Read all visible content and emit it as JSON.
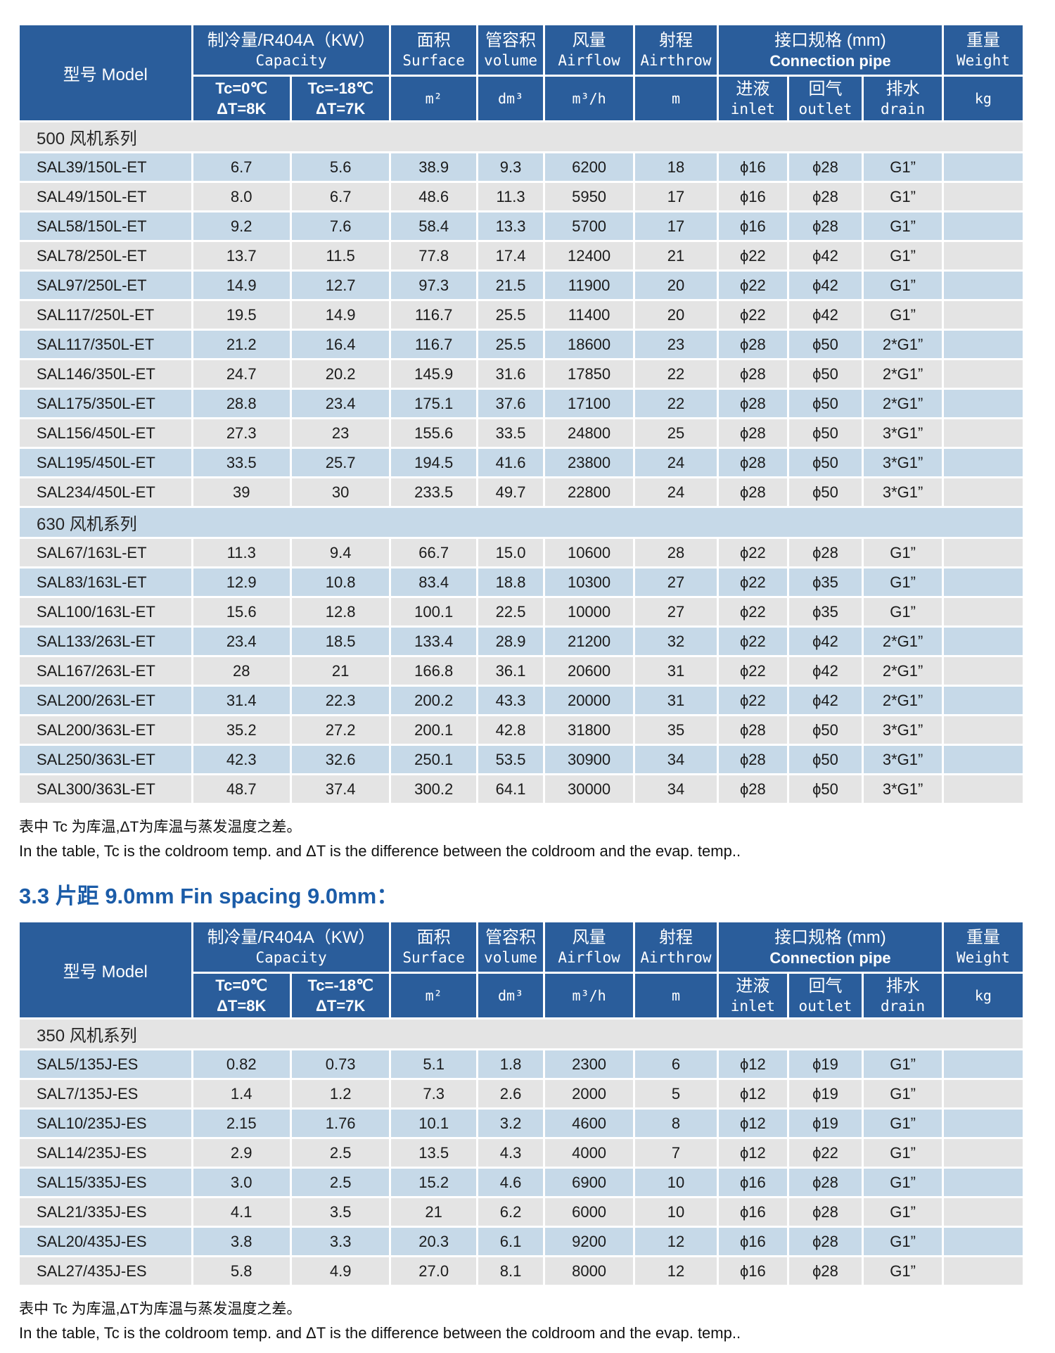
{
  "header": {
    "model": "型号 Model",
    "capacity_cn": "制冷量/R404A（KW）",
    "capacity_en": "Capacity",
    "tc0_line1": "Tc=0℃",
    "tc0_line2": "ΔT=8K",
    "tc18_line1": "Tc=-18℃",
    "tc18_line2": "ΔT=7K",
    "surface_cn": "面积",
    "surface_en": "Surface",
    "surface_unit": "m²",
    "volume_cn": "管容积",
    "volume_en": "volume",
    "volume_unit": "dm³",
    "airflow_cn": "风量",
    "airflow_en": "Airflow",
    "airflow_unit": "m³/h",
    "airthrow_cn": "射程",
    "airthrow_en": "Airthrow",
    "airthrow_unit": "m",
    "pipe_cn": "接口规格 (mm)",
    "pipe_en": "Connection pipe",
    "inlet_cn": "进液",
    "inlet_en": "inlet",
    "outlet_cn": "回气",
    "outlet_en": "outlet",
    "drain_cn": "排水",
    "drain_en": "drain",
    "weight_cn": "重量",
    "weight_en": "Weight",
    "weight_unit": "kg"
  },
  "colors": {
    "header_blue": "#2a5d9b",
    "row_blue": "#c6d9e8",
    "row_gray": "#e4e4e4",
    "heading_blue": "#1b5ca8"
  },
  "table1": {
    "sections": [
      {
        "title": "500 风机系列",
        "rows": [
          [
            "SAL39/150L-ET",
            "6.7",
            "5.6",
            "38.9",
            "9.3",
            "6200",
            "18",
            "ϕ16",
            "ϕ28",
            "G1”",
            ""
          ],
          [
            "SAL49/150L-ET",
            "8.0",
            "6.7",
            "48.6",
            "11.3",
            "5950",
            "17",
            "ϕ16",
            "ϕ28",
            "G1”",
            ""
          ],
          [
            "SAL58/150L-ET",
            "9.2",
            "7.6",
            "58.4",
            "13.3",
            "5700",
            "17",
            "ϕ16",
            "ϕ28",
            "G1”",
            ""
          ],
          [
            "SAL78/250L-ET",
            "13.7",
            "11.5",
            "77.8",
            "17.4",
            "12400",
            "21",
            "ϕ22",
            "ϕ42",
            "G1”",
            ""
          ],
          [
            "SAL97/250L-ET",
            "14.9",
            "12.7",
            "97.3",
            "21.5",
            "11900",
            "20",
            "ϕ22",
            "ϕ42",
            "G1”",
            ""
          ],
          [
            "SAL117/250L-ET",
            "19.5",
            "14.9",
            "116.7",
            "25.5",
            "11400",
            "20",
            "ϕ22",
            "ϕ42",
            "G1”",
            ""
          ],
          [
            "SAL117/350L-ET",
            "21.2",
            "16.4",
            "116.7",
            "25.5",
            "18600",
            "23",
            "ϕ28",
            "ϕ50",
            "2*G1”",
            ""
          ],
          [
            "SAL146/350L-ET",
            "24.7",
            "20.2",
            "145.9",
            "31.6",
            "17850",
            "22",
            "ϕ28",
            "ϕ50",
            "2*G1”",
            ""
          ],
          [
            "SAL175/350L-ET",
            "28.8",
            "23.4",
            "175.1",
            "37.6",
            "17100",
            "22",
            "ϕ28",
            "ϕ50",
            "2*G1”",
            ""
          ],
          [
            "SAL156/450L-ET",
            "27.3",
            "23",
            "155.6",
            "33.5",
            "24800",
            "25",
            "ϕ28",
            "ϕ50",
            "3*G1”",
            ""
          ],
          [
            "SAL195/450L-ET",
            "33.5",
            "25.7",
            "194.5",
            "41.6",
            "23800",
            "24",
            "ϕ28",
            "ϕ50",
            "3*G1”",
            ""
          ],
          [
            "SAL234/450L-ET",
            "39",
            "30",
            "233.5",
            "49.7",
            "22800",
            "24",
            "ϕ28",
            "ϕ50",
            "3*G1”",
            ""
          ]
        ]
      },
      {
        "title": "630 风机系列",
        "rows": [
          [
            "SAL67/163L-ET",
            "11.3",
            "9.4",
            "66.7",
            "15.0",
            "10600",
            "28",
            "ϕ22",
            "ϕ28",
            "G1”",
            ""
          ],
          [
            "SAL83/163L-ET",
            "12.9",
            "10.8",
            "83.4",
            "18.8",
            "10300",
            "27",
            "ϕ22",
            "ϕ35",
            "G1”",
            ""
          ],
          [
            "SAL100/163L-ET",
            "15.6",
            "12.8",
            "100.1",
            "22.5",
            "10000",
            "27",
            "ϕ22",
            "ϕ35",
            "G1”",
            ""
          ],
          [
            "SAL133/263L-ET",
            "23.4",
            "18.5",
            "133.4",
            "28.9",
            "21200",
            "32",
            "ϕ22",
            "ϕ42",
            "2*G1”",
            ""
          ],
          [
            "SAL167/263L-ET",
            "28",
            "21",
            "166.8",
            "36.1",
            "20600",
            "31",
            "ϕ22",
            "ϕ42",
            "2*G1”",
            ""
          ],
          [
            "SAL200/263L-ET",
            "31.4",
            "22.3",
            "200.2",
            "43.3",
            "20000",
            "31",
            "ϕ22",
            "ϕ42",
            "2*G1”",
            ""
          ],
          [
            "SAL200/363L-ET",
            "35.2",
            "27.2",
            "200.1",
            "42.8",
            "31800",
            "35",
            "ϕ28",
            "ϕ50",
            "3*G1”",
            ""
          ],
          [
            "SAL250/363L-ET",
            "42.3",
            "32.6",
            "250.1",
            "53.5",
            "30900",
            "34",
            "ϕ28",
            "ϕ50",
            "3*G1”",
            ""
          ],
          [
            "SAL300/363L-ET",
            "48.7",
            "37.4",
            "300.2",
            "64.1",
            "30000",
            "34",
            "ϕ28",
            "ϕ50",
            "3*G1”",
            ""
          ]
        ]
      }
    ]
  },
  "footnote": {
    "cn": "表中 Tc 为库温,ΔT为库温与蒸发温度之差。",
    "en": "In the table, Tc is the coldroom temp. and ΔT is the difference between the coldroom and the evap. temp.."
  },
  "heading_9mm": "3.3 片距 9.0mm Fin spacing 9.0mm：",
  "table2": {
    "sections": [
      {
        "title": "350 风机系列",
        "rows": [
          [
            "SAL5/135J-ES",
            "0.82",
            "0.73",
            "5.1",
            "1.8",
            "2300",
            "6",
            "ϕ12",
            "ϕ19",
            "G1”",
            ""
          ],
          [
            "SAL7/135J-ES",
            "1.4",
            "1.2",
            "7.3",
            "2.6",
            "2000",
            "5",
            "ϕ12",
            "ϕ19",
            "G1”",
            ""
          ],
          [
            "SAL10/235J-ES",
            "2.15",
            "1.76",
            "10.1",
            "3.2",
            "4600",
            "8",
            "ϕ12",
            "ϕ19",
            "G1”",
            ""
          ],
          [
            "SAL14/235J-ES",
            "2.9",
            "2.5",
            "13.5",
            "4.3",
            "4000",
            "7",
            "ϕ12",
            "ϕ22",
            "G1”",
            ""
          ],
          [
            "SAL15/335J-ES",
            "3.0",
            "2.5",
            "15.2",
            "4.6",
            "6900",
            "10",
            "ϕ16",
            "ϕ28",
            "G1”",
            ""
          ],
          [
            "SAL21/335J-ES",
            "4.1",
            "3.5",
            "21",
            "6.2",
            "6000",
            "10",
            "ϕ16",
            "ϕ28",
            "G1”",
            ""
          ],
          [
            "SAL20/435J-ES",
            "3.8",
            "3.3",
            "20.3",
            "6.1",
            "9200",
            "12",
            "ϕ16",
            "ϕ28",
            "G1”",
            ""
          ],
          [
            "SAL27/435J-ES",
            "5.8",
            "4.9",
            "27.0",
            "8.1",
            "8000",
            "12",
            "ϕ16",
            "ϕ28",
            "G1”",
            ""
          ]
        ]
      }
    ]
  }
}
